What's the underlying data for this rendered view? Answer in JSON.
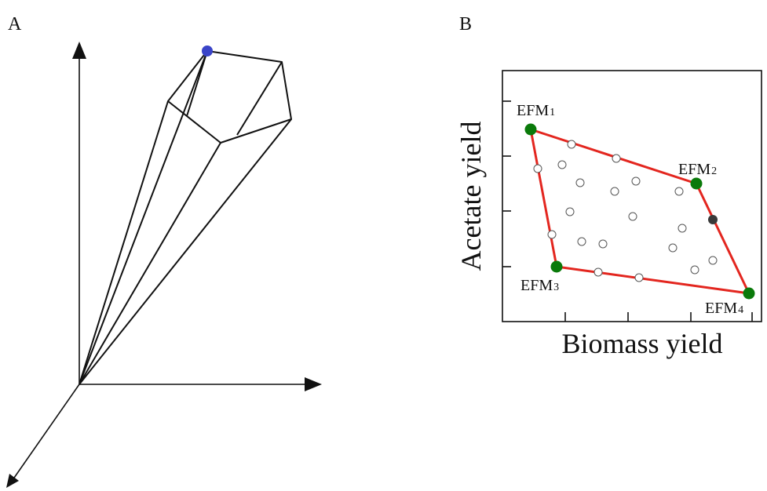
{
  "panels": {
    "a": {
      "letter": "A"
    },
    "b": {
      "letter": "B"
    }
  },
  "chart_b": {
    "xlabel": "Biomass yield",
    "ylabel": "Acetate yield",
    "efm_labels": [
      {
        "base": "EFM",
        "sub": "1"
      },
      {
        "base": "EFM",
        "sub": "2"
      },
      {
        "base": "EFM",
        "sub": "3"
      },
      {
        "base": "EFM",
        "sub": "4"
      }
    ]
  },
  "colors": {
    "polygon": "#e3261f",
    "efm_point": "#0a7a0a",
    "interior_point": "#ffffff",
    "highlight_point": "#3a3a3a",
    "apex_point": "#3a44c8",
    "lines": "#111111"
  }
}
